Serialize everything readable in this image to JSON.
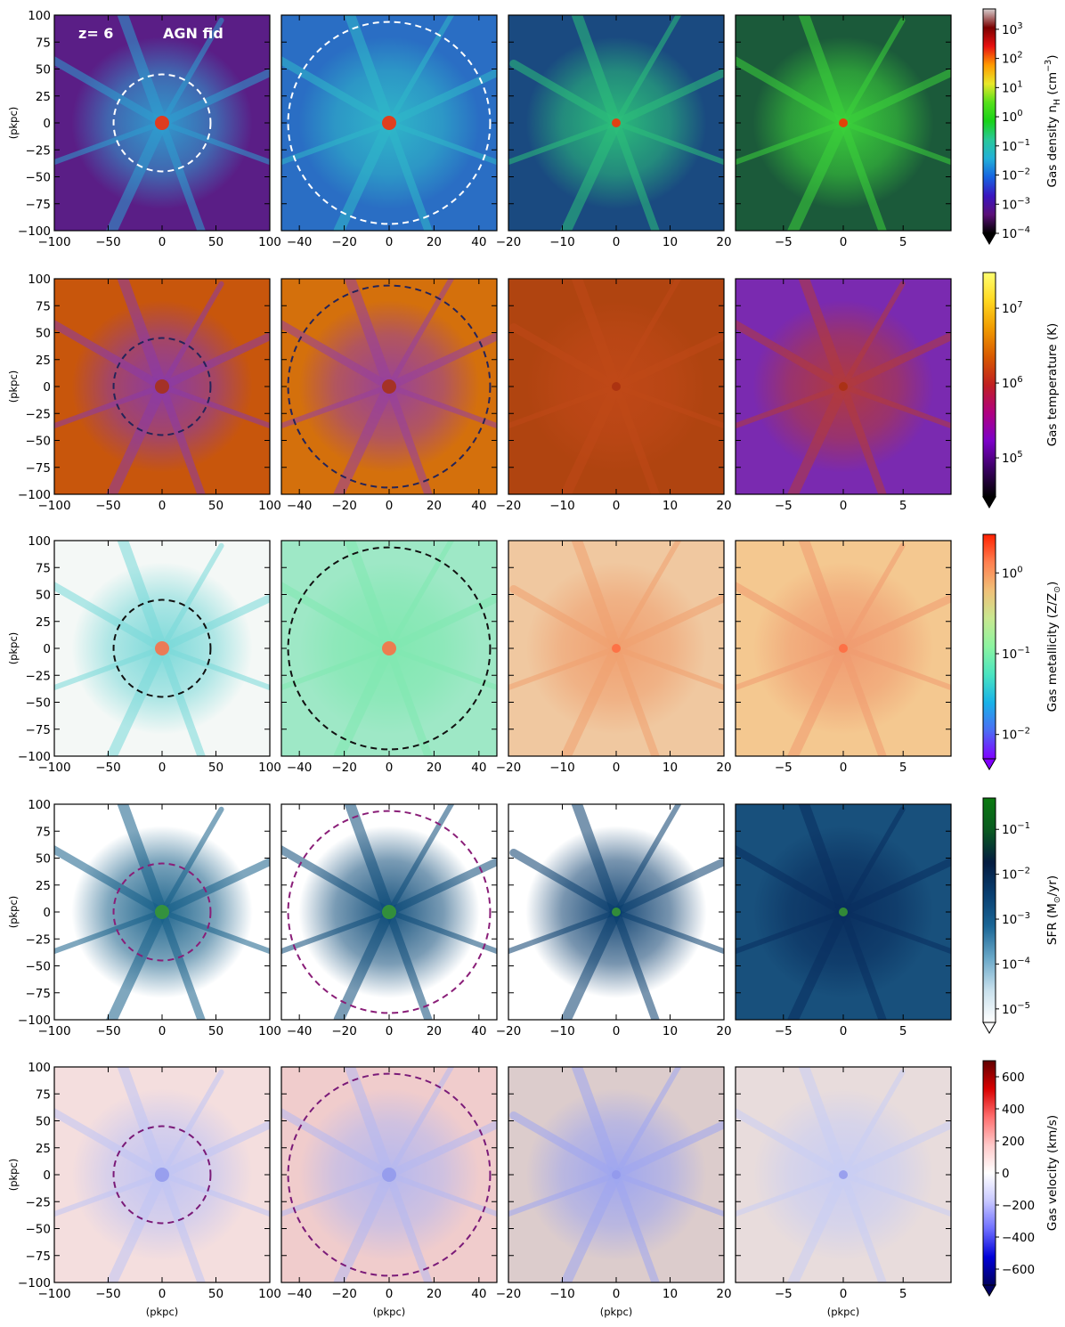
{
  "figure": {
    "annotations": {
      "redshift": "z= 6",
      "model": "AGN fid"
    },
    "x_axis_label": "(pkpc)",
    "y_axis_label": "(pkpc)"
  },
  "chart_data": {
    "type": "heatmap",
    "columns": [
      {
        "xlim": [
          -100,
          100
        ],
        "ylim": [
          -100,
          100
        ],
        "xticks": [
          -100,
          -50,
          0,
          50,
          100
        ],
        "xtick_labels": [
          "−100",
          "−50",
          "0",
          "50",
          "100"
        ],
        "yticks": [
          -100,
          -75,
          -50,
          -25,
          0,
          25,
          50,
          75,
          100
        ],
        "ytick_labels": [
          "−100",
          "−75",
          "−50",
          "−25",
          "0",
          "25",
          "50",
          "75",
          "100"
        ],
        "circle_radius": 45
      },
      {
        "xlim": [
          -48,
          48
        ],
        "ylim": [
          -48,
          48
        ],
        "xticks": [
          -40,
          -20,
          0,
          20,
          40
        ],
        "xtick_labels": [
          "−40",
          "−20",
          "0",
          "20",
          "40"
        ],
        "circle_radius": 45
      },
      {
        "xlim": [
          -20,
          20
        ],
        "ylim": [
          -20,
          20
        ],
        "xticks": [
          -20,
          -10,
          0,
          10,
          20
        ],
        "xtick_labels": [
          "−20",
          "−10",
          "0",
          "10",
          "20"
        ]
      },
      {
        "xlim": [
          -9,
          9
        ],
        "ylim": [
          -9,
          9
        ],
        "xticks": [
          -5,
          0,
          5
        ],
        "xtick_labels": [
          "−5",
          "0",
          "5"
        ]
      }
    ],
    "rows": [
      {
        "quantity": "Gas density",
        "colorbar_label": "Gas density n",
        "label_sub": "H",
        "label_unit": " (cm",
        "label_sup": "−3",
        "label_close": ")",
        "scale": "log",
        "vmin": 0.0001,
        "vmax": 5000,
        "ticks": [
          {
            "v": 0.0001,
            "b": "10",
            "e": "−4"
          },
          {
            "v": 0.001,
            "b": "10",
            "e": "−3"
          },
          {
            "v": 0.01,
            "b": "10",
            "e": "−2"
          },
          {
            "v": 0.1,
            "b": "10",
            "e": "−1"
          },
          {
            "v": 1,
            "b": "10",
            "e": "0"
          },
          {
            "v": 10,
            "b": "10",
            "e": "1"
          },
          {
            "v": 100,
            "b": "10",
            "e": "2"
          },
          {
            "v": 1000,
            "b": "10",
            "e": "3"
          }
        ],
        "colors": [
          "#000000",
          "#5b0f78",
          "#3a15c0",
          "#1763e0",
          "#22b0d8",
          "#29c89a",
          "#18d218",
          "#55e01a",
          "#e8e82a",
          "#ff9a00",
          "#e81010",
          "#7a0000",
          "#d8d0d0"
        ],
        "circle_color": "#ffffff",
        "panel_bg": [
          "#5a1e86",
          "#2a6ec4",
          "#1a4a80",
          "#1b5a3a"
        ],
        "panel_blobs": [
          "#2e9fd0",
          "#2fb8c8",
          "#2bbf7a",
          "#3bd13b"
        ],
        "center_color": "#ff2a00"
      },
      {
        "quantity": "Gas temperature",
        "colorbar_label": "Gas temperature (K)",
        "scale": "log",
        "vmin": 30000,
        "vmax": 30000000,
        "ticks": [
          {
            "v": 100000,
            "b": "10",
            "e": "5"
          },
          {
            "v": 1000000,
            "b": "10",
            "e": "6"
          },
          {
            "v": 10000000,
            "b": "10",
            "e": "7"
          }
        ],
        "colors": [
          "#000000",
          "#3a0062",
          "#7c00c8",
          "#b00080",
          "#c02020",
          "#d85a00",
          "#f09a00",
          "#ffd820",
          "#ffff70"
        ],
        "circle_color": "#23245a",
        "panel_bg": [
          "#c8560c",
          "#d4700c",
          "#b04410",
          "#7a2ab0"
        ],
        "panel_blobs": [
          "#8a3aa8",
          "#9640a0",
          "#c04818",
          "#b23a3a"
        ],
        "center_color": "#a83010"
      },
      {
        "quantity": "Gas metallicity",
        "colorbar_label": "Gas metallicity (Z/Z",
        "label_sun": "⊙",
        "label_close": ")",
        "scale": "log",
        "vmin": 0.005,
        "vmax": 3,
        "ticks": [
          {
            "v": 0.01,
            "b": "10",
            "e": "−2"
          },
          {
            "v": 0.1,
            "b": "10",
            "e": "−1"
          },
          {
            "v": 1,
            "b": "10",
            "e": "0"
          }
        ],
        "colors": [
          "#8000ff",
          "#4c6cf4",
          "#18b2e8",
          "#4ae4c0",
          "#8cf4a0",
          "#c8e890",
          "#f0c078",
          "#ff8050",
          "#ff2000"
        ],
        "circle_color": "#111111",
        "panel_bg": [
          "#f4f8f6",
          "#9ee8c6",
          "#f0c8a0",
          "#f4c890"
        ],
        "panel_blobs": [
          "#78d8d8",
          "#80e8b0",
          "#f0a070",
          "#f09a70"
        ],
        "center_color": "#ff6a40"
      },
      {
        "quantity": "SFR",
        "colorbar_label": "SFR (M",
        "label_sun": "⊙",
        "label_close": "/yr)",
        "scale": "log",
        "vmin": 5e-06,
        "vmax": 0.5,
        "ticks": [
          {
            "v": 1e-05,
            "b": "10",
            "e": "−5"
          },
          {
            "v": 0.0001,
            "b": "10",
            "e": "−4"
          },
          {
            "v": 0.001,
            "b": "10",
            "e": "−3"
          },
          {
            "v": 0.01,
            "b": "10",
            "e": "−2"
          },
          {
            "v": 0.1,
            "b": "10",
            "e": "−1"
          }
        ],
        "colors": [
          "#ffffff",
          "#c8e0ec",
          "#6aa8c8",
          "#1a6696",
          "#083e70",
          "#041c40",
          "#0a5a20",
          "#0a7a10"
        ],
        "circle_color": "#8a1e78",
        "panel_bg": [
          "#ffffff",
          "#ffffff",
          "#ffffff",
          "#18507c"
        ],
        "panel_blobs": [
          "#155e88",
          "#0c4a78",
          "#0a3e6e",
          "#0a2e5e"
        ],
        "center_color": "#3a9a30"
      },
      {
        "quantity": "Gas velocity",
        "colorbar_label": "Gas velocity (km/s)",
        "scale": "linear",
        "vmin": -700,
        "vmax": 700,
        "ticks": [
          {
            "v": -600,
            "t": "−600"
          },
          {
            "v": -400,
            "t": "−400"
          },
          {
            "v": -200,
            "t": "−200"
          },
          {
            "v": 0,
            "t": "0"
          },
          {
            "v": 200,
            "t": "200"
          },
          {
            "v": 400,
            "t": "400"
          },
          {
            "v": 600,
            "t": "600"
          }
        ],
        "colors": [
          "#000060",
          "#0000d8",
          "#6e6eff",
          "#c8c8ff",
          "#ffffff",
          "#ffc8c8",
          "#ff6e6e",
          "#d80000",
          "#600000"
        ],
        "circle_color": "#7a1a78",
        "panel_bg": [
          "#f4dede",
          "#f0cccc",
          "#dccccc",
          "#e8dcdc"
        ],
        "panel_blobs": [
          "#c0c4f4",
          "#b4b8f0",
          "#9ea6f0",
          "#c8cdf4"
        ],
        "center_color": "#9098ec"
      }
    ]
  }
}
